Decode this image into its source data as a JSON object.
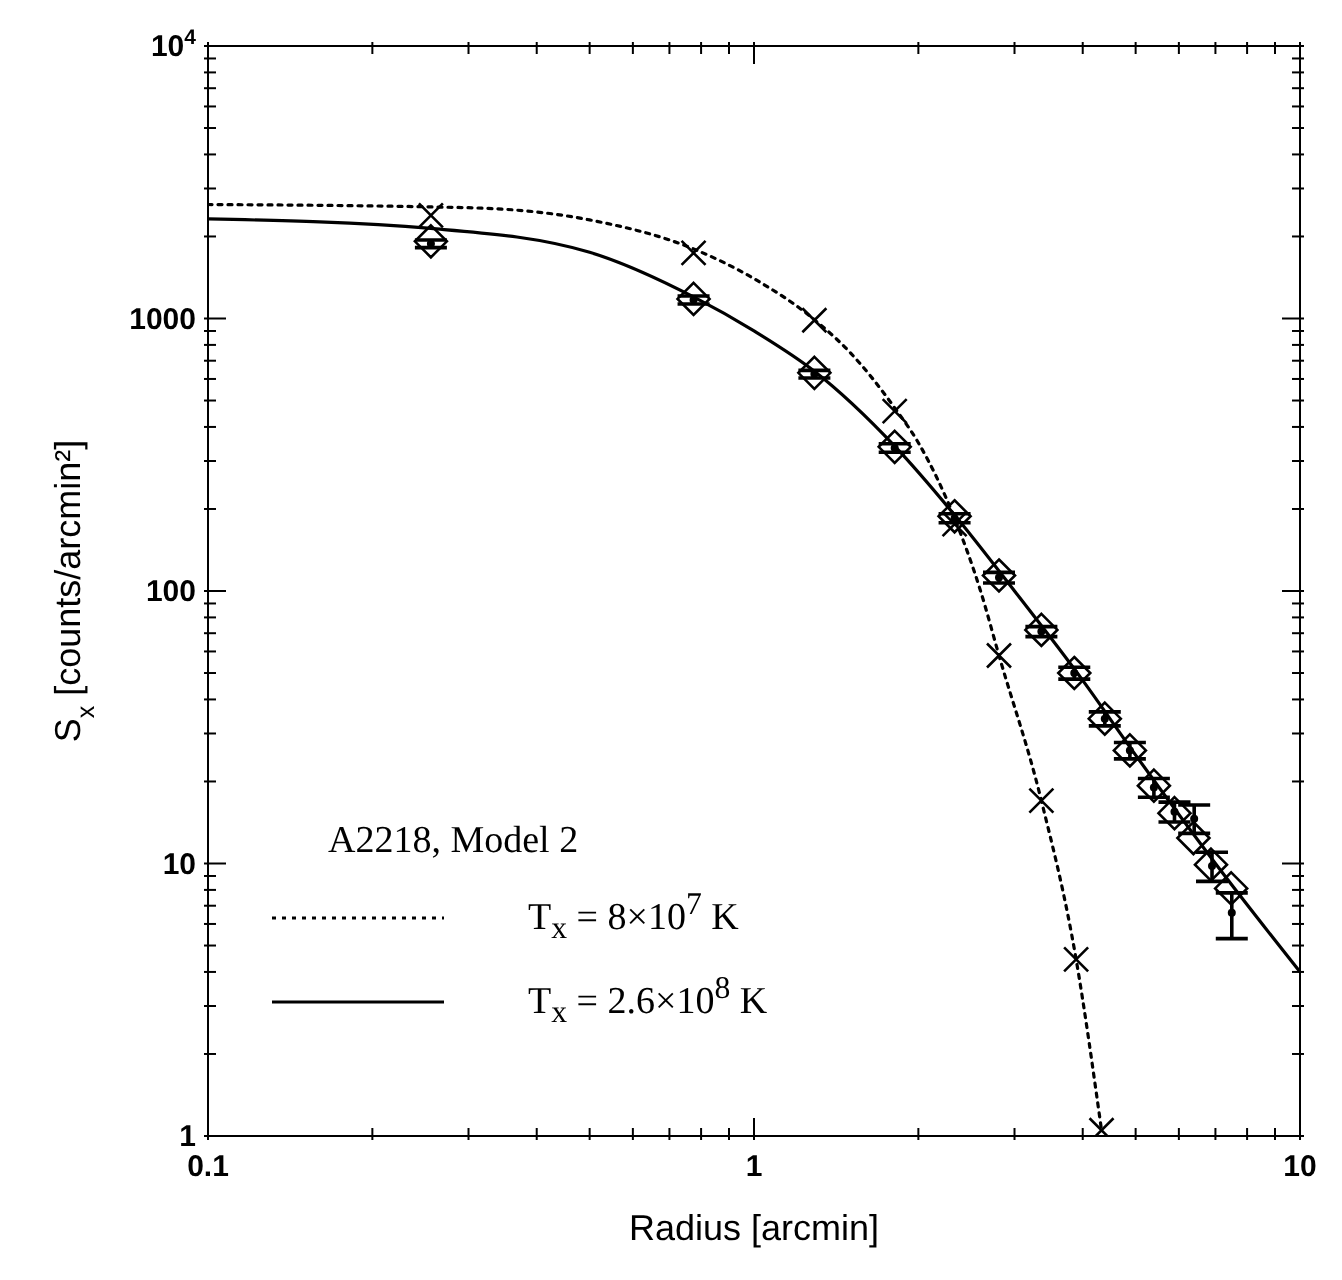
{
  "chart_data": {
    "type": "line",
    "xlabel": "Radius [arcmin]",
    "ylabel": "S$_{x}$ [counts/arcmin²]",
    "legend_title": "A2218, Model 2",
    "legend": "bottom left",
    "log": "xy",
    "xlim": [
      0.1,
      10
    ],
    "ylim": [
      1,
      10000
    ],
    "xticks": [
      0.1,
      {
        "value": 0.2,
        "label": null
      },
      {
        "value": 0.3,
        "label": null
      },
      {
        "value": 0.4,
        "label": null
      },
      {
        "value": 0.5,
        "label": null
      },
      {
        "value": 0.6,
        "label": null
      },
      {
        "value": 0.7,
        "label": null
      },
      {
        "value": 0.8,
        "label": null
      },
      {
        "value": 0.9,
        "label": null
      },
      1,
      {
        "value": 2,
        "label": null
      },
      {
        "value": 3,
        "label": null
      },
      {
        "value": 4,
        "label": null
      },
      {
        "value": 5,
        "label": null
      },
      {
        "value": 6,
        "label": null
      },
      {
        "value": 7,
        "label": null
      },
      {
        "value": 8,
        "label": null
      },
      {
        "value": 9,
        "label": null
      },
      10
    ],
    "yticks": [
      1,
      {
        "value": 2,
        "label": null
      },
      {
        "value": 3,
        "label": null
      },
      {
        "value": 4,
        "label": null
      },
      {
        "value": 5,
        "label": null
      },
      {
        "value": 6,
        "label": null
      },
      {
        "value": 7,
        "label": null
      },
      {
        "value": 8,
        "label": null
      },
      {
        "value": 9,
        "label": null
      },
      10,
      {
        "value": 20,
        "label": null
      },
      {
        "value": 30,
        "label": null
      },
      {
        "value": 40,
        "label": null
      },
      {
        "value": 50,
        "label": null
      },
      {
        "value": 60,
        "label": null
      },
      {
        "value": 70,
        "label": null
      },
      {
        "value": 80,
        "label": null
      },
      {
        "value": 90,
        "label": null
      },
      100,
      {
        "value": 200,
        "label": null
      },
      {
        "value": 300,
        "label": null
      },
      {
        "value": 400,
        "label": null
      },
      {
        "value": 500,
        "label": null
      },
      {
        "value": 600,
        "label": null
      },
      {
        "value": 700,
        "label": null
      },
      {
        "value": 800,
        "label": null
      },
      {
        "value": 900,
        "label": null
      },
      1000,
      {
        "value": 2000,
        "label": null
      },
      {
        "value": 3000,
        "label": null
      },
      {
        "value": 4000,
        "label": null
      },
      {
        "value": 5000,
        "label": null
      },
      {
        "value": 6000,
        "label": null
      },
      {
        "value": 7000,
        "label": null
      },
      {
        "value": 8000,
        "label": null
      },
      {
        "value": 9000,
        "label": null
      },
      {
        "value": 10000,
        "label": "10$^{4}$"
      }
    ],
    "series": [
      {
        "name": "T$_{x}$ = 8×10$^{7}$ K",
        "type": "line",
        "line_style": "dotted",
        "marker": "none",
        "color": "#000000",
        "x": [
          0.1,
          0.3,
          0.5,
          0.775,
          1.0,
          1.29,
          1.5,
          1.81,
          2.0,
          2.33,
          2.6,
          2.81,
          3.36,
          3.89,
          4.33
        ],
        "values": [
          2620,
          2550,
          2300,
          1800,
          1400,
          990,
          750,
          470,
          350,
          185,
          100,
          58,
          17,
          4.45,
          1.05
        ]
      },
      {
        "name": "T$_{x}$ = 2.6×10$^{8}$ K",
        "type": "line",
        "line_style": "solid",
        "marker": "none",
        "color": "#000000",
        "x": [
          0.1,
          0.256,
          0.5,
          0.775,
          1.0,
          1.29,
          1.81,
          2.33,
          3.0,
          4.0,
          5.0,
          7.0,
          10.0
        ],
        "values": [
          2320,
          2140,
          1750,
          1200,
          900,
          640,
          340,
          190,
          100,
          47,
          25,
          10,
          4.0
        ]
      },
      {
        "type": "scatter",
        "marker": "cross",
        "color": "#000000",
        "x": [
          0.256,
          0.775,
          1.29,
          1.81,
          2.33,
          2.81,
          3.36,
          3.89,
          4.33
        ],
        "values": [
          2390,
          1740,
          985,
          457,
          176,
          58,
          17,
          4.45,
          1.05
        ]
      },
      {
        "type": "scatter",
        "marker": "diamond",
        "color": "#000000",
        "x": [
          0.256,
          0.775,
          1.29,
          1.81,
          2.33,
          2.81,
          3.36,
          3.86,
          4.39,
          4.88,
          5.4,
          5.89,
          6.38,
          6.87,
          7.48
        ],
        "values": [
          1920,
          1180,
          632,
          338,
          188,
          114,
          72,
          50,
          34,
          26,
          19.3,
          15.3,
          12.4,
          9.9,
          8.1
        ]
      },
      {
        "type": "scatter",
        "marker": "circle",
        "color": "#000000",
        "x": [
          0.256,
          0.775,
          1.29,
          1.81,
          2.33,
          2.81,
          3.36,
          3.86,
          4.39,
          4.88,
          5.4,
          5.89,
          6.4,
          6.9,
          7.5
        ],
        "values": [
          1880,
          1170,
          625,
          335,
          185,
          112,
          71,
          50,
          34,
          26,
          19,
          15.5,
          14.6,
          9.8,
          6.6
        ],
        "errors": [
          60,
          40,
          20,
          12,
          7,
          5,
          3,
          2.5,
          2,
          1.8,
          1.5,
          1.3,
          [
            12.9,
            16.4
          ],
          1.2,
          [
            5.3,
            7.8
          ]
        ]
      }
    ]
  }
}
